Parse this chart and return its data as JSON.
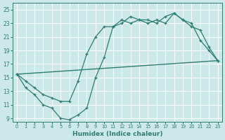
{
  "xlabel": "Humidex (Indice chaleur)",
  "bg_color": "#cce8e8",
  "line_color": "#2e7d6e",
  "grid_color": "#ffffff",
  "xlim": [
    -0.5,
    23.5
  ],
  "ylim": [
    8.5,
    26
  ],
  "xticks": [
    0,
    1,
    2,
    3,
    4,
    5,
    6,
    7,
    8,
    9,
    10,
    11,
    12,
    13,
    14,
    15,
    16,
    17,
    18,
    19,
    20,
    21,
    22,
    23
  ],
  "yticks": [
    9,
    11,
    13,
    15,
    17,
    19,
    21,
    23,
    25
  ],
  "line1_x": [
    0,
    1,
    2,
    3,
    4,
    5,
    6,
    7,
    8,
    9,
    10,
    11,
    12,
    13,
    14,
    15,
    16,
    17,
    18,
    19,
    20,
    21,
    22,
    23
  ],
  "line1_y": [
    15.5,
    13.5,
    12.5,
    11.0,
    10.5,
    9.0,
    8.8,
    9.5,
    10.5,
    15.0,
    18.0,
    22.5,
    23.0,
    24.0,
    23.5,
    23.0,
    23.5,
    23.0,
    24.5,
    23.5,
    23.0,
    20.5,
    19.0,
    17.5
  ],
  "line2_x": [
    0,
    1,
    2,
    3,
    4,
    5,
    6,
    7,
    8,
    9,
    10,
    11,
    12,
    13,
    14,
    15,
    16,
    17,
    18,
    19,
    20,
    21,
    22,
    23
  ],
  "line2_y": [
    15.5,
    14.5,
    13.5,
    12.5,
    12.0,
    11.5,
    11.5,
    14.5,
    18.5,
    21.0,
    22.5,
    22.5,
    23.5,
    23.0,
    23.5,
    23.5,
    23.0,
    24.0,
    24.5,
    23.5,
    22.5,
    22.0,
    19.5,
    17.5
  ],
  "line3_x": [
    0,
    23
  ],
  "line3_y": [
    15.5,
    17.5
  ]
}
